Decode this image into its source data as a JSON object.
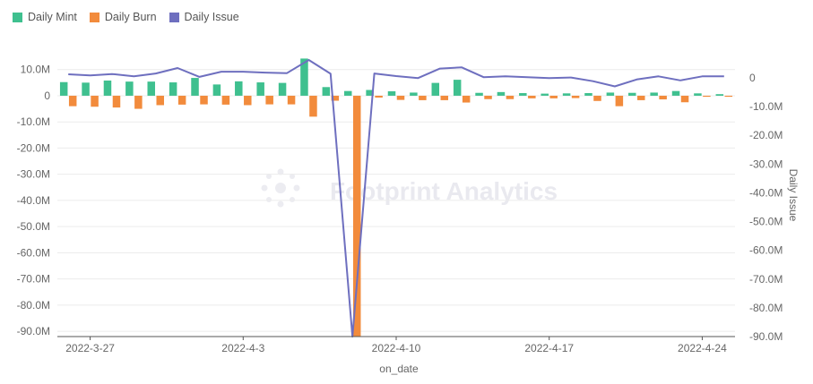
{
  "chart_data": {
    "type": "bar",
    "watermark": "Footprint Analytics",
    "xlabel": "on_date",
    "ylabel_left": "",
    "ylabel_right": "Daily Issue",
    "x_tick_labels": [
      "2022-3-27",
      "2022-4-3",
      "2022-4-10",
      "2022-4-17",
      "2022-4-24"
    ],
    "y_left_ticks": [
      "10.0M",
      "0",
      "-10.0M",
      "-20.0M",
      "-30.0M",
      "-40.0M",
      "-50.0M",
      "-60.0M",
      "-70.0M",
      "-80.0M",
      "-90.0M"
    ],
    "y_right_ticks": [
      "0",
      "-10.0M",
      "-20.0M",
      "-30.0M",
      "-40.0M",
      "-50.0M",
      "-60.0M",
      "-70.0M",
      "-80.0M",
      "-90.0M"
    ],
    "ylim_left": [
      -92,
      14
    ],
    "ylim_right": [
      -90,
      6.5
    ],
    "dates": [
      "2022-3-26",
      "2022-3-27",
      "2022-3-28",
      "2022-3-29",
      "2022-3-30",
      "2022-3-31",
      "2022-4-1",
      "2022-4-2",
      "2022-4-3",
      "2022-4-4",
      "2022-4-5",
      "2022-4-6",
      "2022-4-7",
      "2022-4-8",
      "2022-4-9",
      "2022-4-10",
      "2022-4-11",
      "2022-4-12",
      "2022-4-13",
      "2022-4-14",
      "2022-4-15",
      "2022-4-16",
      "2022-4-17",
      "2022-4-18",
      "2022-4-19",
      "2022-4-20",
      "2022-4-21",
      "2022-4-22",
      "2022-4-23",
      "2022-4-24",
      "2022-4-25"
    ],
    "colors": {
      "mint": "#3fc08f",
      "burn": "#f28b3c",
      "issue": "#6e6fbf"
    },
    "series": [
      {
        "name": "Daily Mint",
        "kind": "bar",
        "axis": "left",
        "values": [
          5.2,
          5.0,
          5.8,
          5.4,
          5.4,
          5.1,
          6.8,
          4.3,
          5.5,
          5.1,
          4.9,
          14.2,
          3.3,
          1.8,
          2.2,
          1.7,
          1.2,
          4.9,
          6.1,
          1.1,
          1.4,
          1.0,
          0.8,
          0.9,
          1.0,
          1.2,
          1.1,
          1.2,
          1.8,
          0.9,
          0.6
        ]
      },
      {
        "name": "Daily Burn",
        "kind": "bar",
        "axis": "left",
        "values": [
          -4.0,
          -4.2,
          -4.5,
          -5.0,
          -3.6,
          -3.4,
          -3.3,
          -3.4,
          -3.6,
          -3.3,
          -3.3,
          -8.0,
          -1.9,
          -93.0,
          -0.7,
          -1.6,
          -1.7,
          -1.7,
          -2.6,
          -1.3,
          -1.3,
          -1.0,
          -1.0,
          -0.9,
          -2.0,
          -4.0,
          -1.7,
          -1.4,
          -2.5,
          -0.4,
          -0.4
        ]
      },
      {
        "name": "Daily Issue",
        "kind": "line",
        "axis": "right",
        "values": [
          1.2,
          0.8,
          1.3,
          0.5,
          1.5,
          3.4,
          0.3,
          2.1,
          2.1,
          1.8,
          1.6,
          6.2,
          1.4,
          -91.0,
          1.5,
          0.6,
          -0.1,
          3.2,
          3.6,
          0.2,
          0.5,
          0.2,
          -0.1,
          0.1,
          -1.2,
          -3.0,
          -0.6,
          0.5,
          -0.9,
          0.5,
          0.5
        ]
      }
    ]
  }
}
